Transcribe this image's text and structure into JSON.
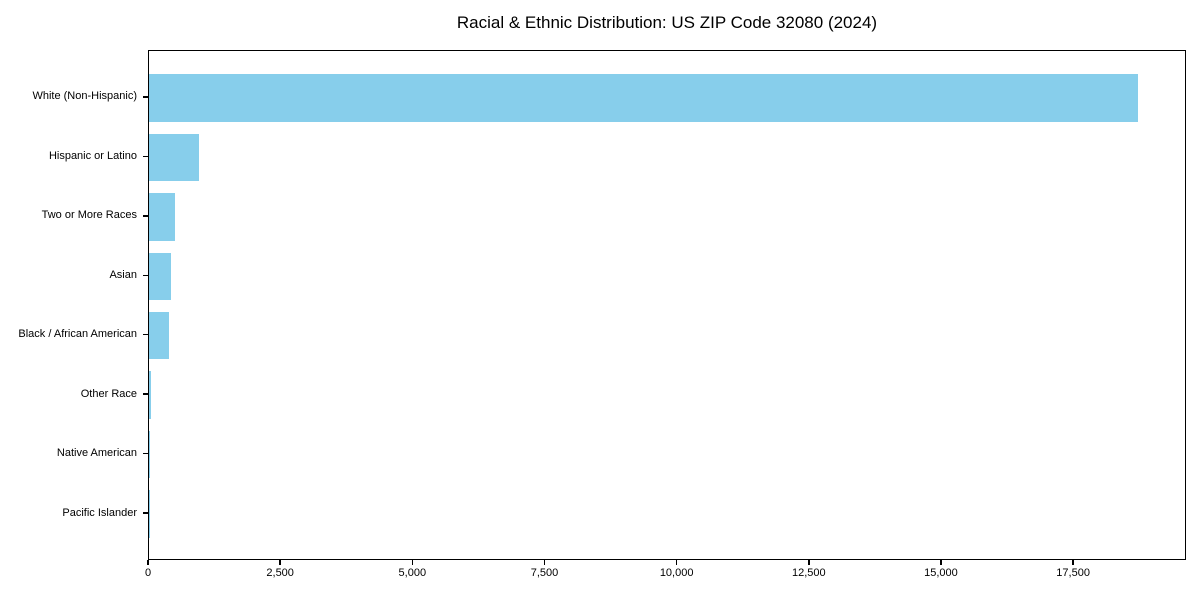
{
  "figure": {
    "title": "Racial & Ethnic Distribution: US ZIP Code 32080 (2024)"
  },
  "chart_data": {
    "type": "bar",
    "orientation": "horizontal",
    "title": "Racial & Ethnic Distribution: US ZIP Code 32080 (2024)",
    "categories": [
      "White (Non-Hispanic)",
      "Hispanic or Latino",
      "Two or More Races",
      "Asian",
      "Black / African American",
      "Other Race",
      "Native American",
      "Pacific Islander"
    ],
    "values": [
      18700,
      940,
      500,
      410,
      380,
      30,
      8,
      3
    ],
    "xlabel": "",
    "ylabel": "",
    "xlim": [
      0,
      19635
    ],
    "xticks": [
      0,
      2500,
      5000,
      7500,
      10000,
      12500,
      15000,
      17500
    ],
    "xtick_labels": [
      "0",
      "2,500",
      "5,000",
      "7,500",
      "10,000",
      "12,500",
      "15,000",
      "17,500"
    ],
    "bar_color": "#87CEEB",
    "background_color": "#ffffff",
    "axis_color": "#000000",
    "grid": false,
    "legend": null
  }
}
